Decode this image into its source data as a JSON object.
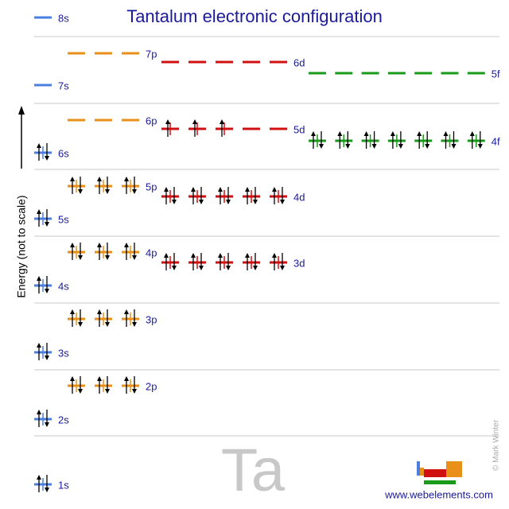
{
  "title": "Tantalum electronic configuration",
  "axis_label": "Energy (not to scale)",
  "orbitals": [
    {
      "label": "1s",
      "electrons": [
        2
      ]
    },
    {
      "label": "2s",
      "electrons": [
        2
      ]
    },
    {
      "label": "2p",
      "electrons": [
        2,
        2,
        2
      ]
    },
    {
      "label": "3s",
      "electrons": [
        2
      ]
    },
    {
      "label": "3p",
      "electrons": [
        2,
        2,
        2
      ]
    },
    {
      "label": "4s",
      "electrons": [
        2
      ]
    },
    {
      "label": "3d",
      "electrons": [
        2,
        2,
        2,
        2,
        2
      ]
    },
    {
      "label": "4p",
      "electrons": [
        2,
        2,
        2
      ]
    },
    {
      "label": "5s",
      "electrons": [
        2
      ]
    },
    {
      "label": "4d",
      "electrons": [
        2,
        2,
        2,
        2,
        2
      ]
    },
    {
      "label": "5p",
      "electrons": [
        2,
        2,
        2
      ]
    },
    {
      "label": "6s",
      "electrons": [
        2
      ]
    },
    {
      "label": "4f",
      "electrons": [
        2,
        2,
        2,
        2,
        2,
        2,
        2
      ]
    },
    {
      "label": "5d",
      "electrons": [
        1,
        1,
        1,
        0,
        0
      ]
    },
    {
      "label": "6p",
      "electrons": [
        0,
        0,
        0
      ]
    },
    {
      "label": "7s",
      "electrons": [
        0
      ]
    },
    {
      "label": "5f",
      "electrons": [
        0,
        0,
        0,
        0,
        0,
        0,
        0
      ]
    },
    {
      "label": "6d",
      "electrons": [
        0,
        0,
        0,
        0,
        0
      ]
    },
    {
      "label": "7p",
      "electrons": [
        0,
        0,
        0
      ]
    },
    {
      "label": "8s",
      "electrons": [
        0
      ]
    }
  ],
  "symbol": "Ta",
  "website": "www.webelements.com",
  "credit": "© Mark Winter"
}
